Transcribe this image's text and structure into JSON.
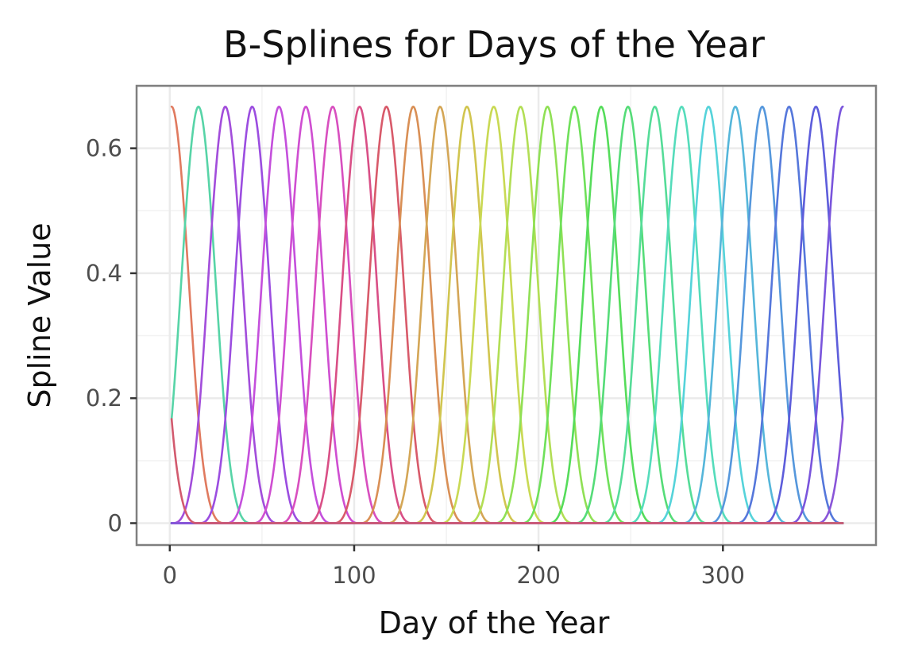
{
  "chart_data": {
    "type": "line",
    "title": "B-Splines for Days of the Year",
    "xlabel": "Day of the Year",
    "ylabel": "Spline Value",
    "xlim": [
      -18,
      383
    ],
    "ylim": [
      -0.035,
      0.7
    ],
    "x_ticks": [
      0,
      100,
      200,
      300
    ],
    "x_tick_labels": [
      "0",
      "100",
      "200",
      "300"
    ],
    "y_ticks": [
      0,
      0.2,
      0.4,
      0.6
    ],
    "y_tick_labels": [
      "0",
      "0.2",
      "0.4",
      "0.6"
    ],
    "grid": true,
    "legend": "none",
    "x_range": [
      1,
      365
    ],
    "peak_value": 0.667,
    "knot_spacing_days": 14.56,
    "series": [
      {
        "color": "#e07a5f",
        "peak_day": 1,
        "value_at_day_1": 0.667
      },
      {
        "color": "#57d4a7",
        "peak_day": 15.56,
        "value_at_day_1": 0.167
      },
      {
        "color": "#a24ddb",
        "peak_day": 30.12
      },
      {
        "color": "#9b4de0",
        "peak_day": 44.68
      },
      {
        "color": "#c44fdc",
        "peak_day": 59.24
      },
      {
        "color": "#cf4ed1",
        "peak_day": 73.8
      },
      {
        "color": "#d84fbf",
        "peak_day": 88.36
      },
      {
        "color": "#d94f86",
        "peak_day": 102.92
      },
      {
        "color": "#d85a6a",
        "peak_day": 117.48
      },
      {
        "color": "#d98f55",
        "peak_day": 132.04
      },
      {
        "color": "#d4a656",
        "peak_day": 146.6
      },
      {
        "color": "#d1c54f",
        "peak_day": 161.16
      },
      {
        "color": "#c9d953",
        "peak_day": 175.72
      },
      {
        "color": "#b2de55",
        "peak_day": 190.28
      },
      {
        "color": "#90e055",
        "peak_day": 204.84
      },
      {
        "color": "#6fe05a",
        "peak_day": 219.4
      },
      {
        "color": "#55dc5a",
        "peak_day": 233.96
      },
      {
        "color": "#55dc78",
        "peak_day": 248.52
      },
      {
        "color": "#55dc98",
        "peak_day": 263.08
      },
      {
        "color": "#55dcbb",
        "peak_day": 277.64
      },
      {
        "color": "#55d3da",
        "peak_day": 292.2
      },
      {
        "color": "#55b6da",
        "peak_day": 306.76
      },
      {
        "color": "#5597dc",
        "peak_day": 321.32
      },
      {
        "color": "#5577db",
        "peak_day": 335.88
      },
      {
        "color": "#5d5ddb",
        "peak_day": 350.44
      },
      {
        "color": "#7a55dc",
        "peak_day": 365,
        "value_at_day_365": 0.667
      },
      {
        "color": "#8a55d8",
        "peak_day": 379.56,
        "value_at_day_365": 0.167
      },
      {
        "color": "#d25a6e",
        "peak_day": -13.56,
        "value_at_day_1": 0.167
      }
    ]
  }
}
